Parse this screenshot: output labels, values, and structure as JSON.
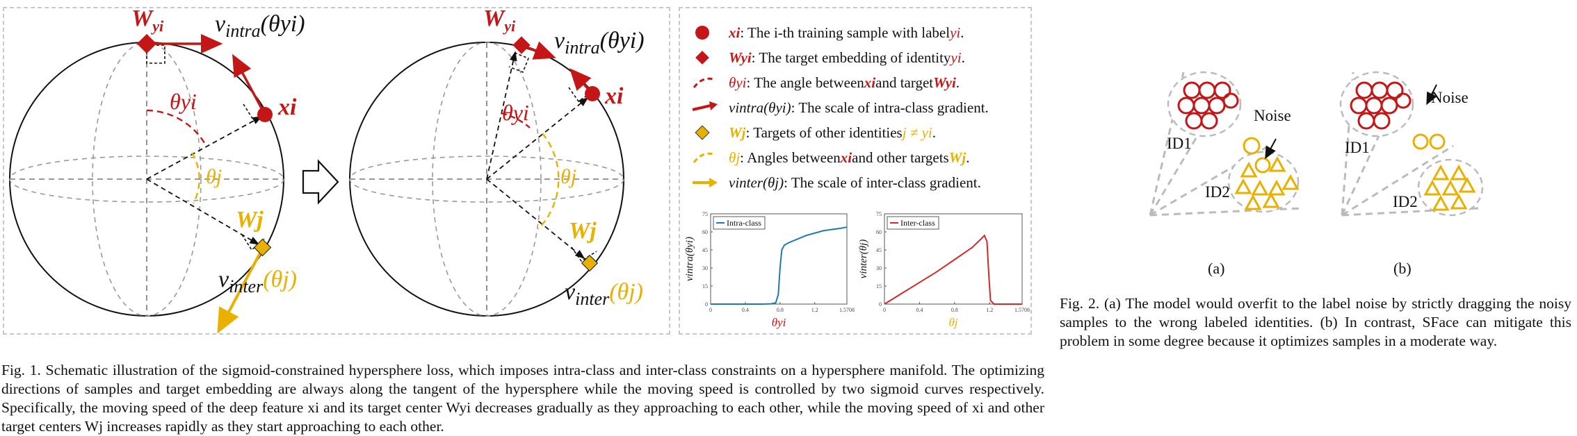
{
  "figure1": {
    "left_panel": {
      "labels": {
        "w_yi": "W",
        "w_yi_sub": "yi",
        "v_intra": "v",
        "v_intra_sub": "intra",
        "v_intra_arg": "(θyi)",
        "theta_yi": "θyi",
        "x_i": "xi",
        "theta_j": "θj",
        "w_j": "Wj",
        "v_inter": "v",
        "v_inter_sub": "inter",
        "v_inter_arg": "(θj)"
      }
    },
    "right_panel": {
      "labels": {
        "w_yi": "W",
        "w_yi_sub": "yi",
        "v_intra": "v",
        "v_intra_sub": "intra",
        "v_intra_arg": "(θyi)",
        "theta_yi": "θyi",
        "x_i": "xi",
        "theta_j": "θj",
        "w_j": "Wj",
        "v_inter": "v",
        "v_inter_sub": "inter",
        "v_inter_arg": "(θj)"
      }
    },
    "legend": [
      {
        "icon": "red-circle",
        "symbol": "xi",
        "text": " :   The i-th training sample with label ",
        "tail": "yi",
        "end": "."
      },
      {
        "icon": "red-diamond",
        "symbol": "Wyi",
        "text": " : The target embedding of identity ",
        "tail": "yi",
        "end": "."
      },
      {
        "icon": "red-dashed-arc",
        "symbol": "θyi",
        "text": " :  The angle between ",
        "mid": "xi",
        "text2": " and target ",
        "tail": "Wyi",
        "end": "."
      },
      {
        "icon": "red-arrow",
        "symbol": "vintra(θyi)",
        "text": " : The scale of intra-class gradient."
      },
      {
        "icon": "gold-diamond",
        "symbol": "Wj",
        "text": " : Targets of other identities ",
        "tail": "j ≠ yi",
        "end": "."
      },
      {
        "icon": "gold-dashed-arc",
        "symbol": "θj",
        "text": " : Angles between ",
        "mid": "xi",
        "text2": " and other targets ",
        "tail": "Wj",
        "end": "."
      },
      {
        "icon": "gold-arrow",
        "symbol": "vinter(θj)",
        "text": " : The scale of inter-class gradient."
      }
    ],
    "caption": "Fig. 1.  Schematic illustration of the sigmoid-constrained hypersphere loss, which imposes intra-class and inter-class constraints on a hypersphere manifold. The optimizing directions of samples and target embedding are always along the tangent of the hypersphere while the moving speed is controlled by two sigmoid curves respectively. Specifically, the moving speed of the deep feature xi and its target center Wyi decreases gradually as they approaching to each other, while the moving speed of xi and other target centers Wj increases rapidly as they start approaching to each other."
  },
  "chart_data": [
    {
      "type": "line",
      "legend": "Intra-class",
      "xlabel": "θyi",
      "ylabel": "vintra(θyi)",
      "xlim": [
        0,
        1.5708
      ],
      "ylim": [
        0,
        75
      ],
      "xticks": [
        "0",
        "0.4",
        "0.8",
        "1.2",
        "1.5708"
      ],
      "yticks": [
        "0",
        "15",
        "30",
        "45",
        "60",
        "75"
      ],
      "color": "#1f77b4",
      "x": [
        0,
        0.4,
        0.6,
        0.7,
        0.75,
        0.78,
        0.8,
        0.82,
        0.85,
        0.9,
        1.0,
        1.1,
        1.2,
        1.3,
        1.4,
        1.5,
        1.5708
      ],
      "y": [
        0,
        0,
        0,
        0.2,
        1,
        8,
        30,
        45,
        49,
        51,
        54,
        57,
        59,
        61,
        62,
        63,
        64
      ]
    },
    {
      "type": "line",
      "legend": "Inter-class",
      "xlabel": "θj",
      "ylabel": "vinter(θj)",
      "xlim": [
        0,
        1.5708
      ],
      "ylim": [
        0,
        75
      ],
      "xticks": [
        "0",
        "0.4",
        "0.8",
        "1.2",
        "1.5708"
      ],
      "yticks": [
        "0",
        "15",
        "30",
        "45",
        "60",
        "75"
      ],
      "color": "#d62728",
      "x": [
        0,
        0.2,
        0.4,
        0.6,
        0.8,
        1.0,
        1.1,
        1.14,
        1.17,
        1.19,
        1.21,
        1.25,
        1.5708
      ],
      "y": [
        0,
        9,
        18,
        27,
        37,
        47,
        54,
        57,
        52,
        25,
        3,
        0,
        0
      ]
    }
  ],
  "figure2": {
    "panel_a": {
      "noise": "Noise",
      "id1": "ID1",
      "id2": "ID2",
      "label": "(a)"
    },
    "panel_b": {
      "noise": "Noise",
      "id1": "ID1",
      "id2": "ID2",
      "label": "(b)"
    },
    "caption": "Fig. 2.  (a) The model would overfit to the label noise by strictly dragging the noisy samples to the wrong labeled identities. (b) In contrast, SFace can mitigate this problem in some degree because it optimizes samples in a moderate way."
  },
  "colors": {
    "red": "#c41616",
    "gold": "#e8b000",
    "blue": "#1f77b4",
    "chart_red": "#d62728"
  }
}
